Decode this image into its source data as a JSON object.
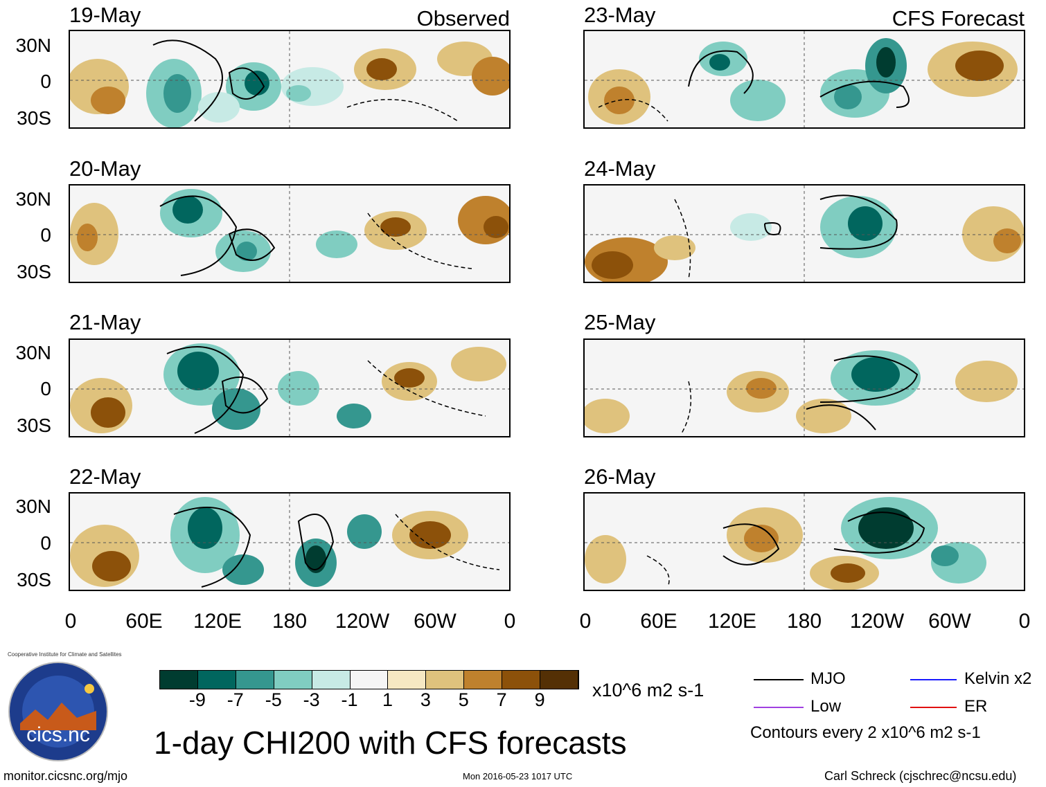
{
  "header": {
    "observed_label": "Observed",
    "forecast_label": "CFS Forecast"
  },
  "panels": {
    "left": [
      {
        "date": "19-May",
        "kind": "observed"
      },
      {
        "date": "20-May",
        "kind": "observed"
      },
      {
        "date": "21-May",
        "kind": "observed"
      },
      {
        "date": "22-May",
        "kind": "observed"
      }
    ],
    "right": [
      {
        "date": "23-May",
        "kind": "forecast"
      },
      {
        "date": "24-May",
        "kind": "forecast"
      },
      {
        "date": "25-May",
        "kind": "forecast"
      },
      {
        "date": "26-May",
        "kind": "forecast"
      }
    ]
  },
  "axes": {
    "lat_labels": [
      "30N",
      "0",
      "30S"
    ],
    "lon_labels": [
      "0",
      "60E",
      "120E",
      "180",
      "120W",
      "60W",
      "0"
    ]
  },
  "colorbar": {
    "labels": [
      "-9",
      "-7",
      "-5",
      "-3",
      "-1",
      "1",
      "3",
      "5",
      "7",
      "9"
    ],
    "units": "x10^6 m2 s-1",
    "colors": [
      "#003c30",
      "#01665e",
      "#35978f",
      "#80cdc1",
      "#c7eae5",
      "#f5f5f5",
      "#f6e8c3",
      "#dfc27d",
      "#bf812d",
      "#8c510a",
      "#543005"
    ]
  },
  "legend": {
    "mjo": "MJO",
    "kelvin": "Kelvin x2",
    "low": "Low",
    "er": "ER",
    "contour_note": "Contours every 2 x10^6 m2 s-1",
    "colors": {
      "mjo": "#000000",
      "kelvin": "#1a1aff",
      "low": "#a040e0",
      "er": "#e01010"
    }
  },
  "title": "1-day CHI200 with CFS forecasts",
  "logo": {
    "text": "cics.nc",
    "ring_text": "Cooperative Institute for Climate and Satellites"
  },
  "footer": {
    "url": "monitor.cicsnc.org/mjo",
    "timestamp": "Mon 2016-05-23 1017 UTC",
    "author": "Carl Schreck (cjschrec@ncsu.edu)"
  }
}
